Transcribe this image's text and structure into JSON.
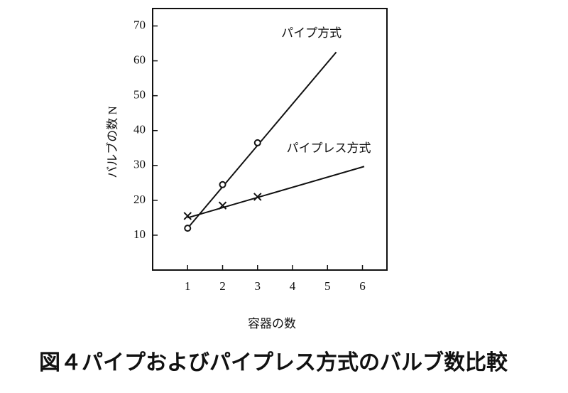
{
  "chart_data": {
    "type": "line",
    "caption": "図４パイプおよびパイプレス方式のバルブ数比較",
    "x_label": "容器の数",
    "y_label": "バルブの数 N",
    "xlim": [
      0,
      6.7
    ],
    "xticks": [
      1,
      2,
      3,
      4,
      5,
      6
    ],
    "ylim": [
      0,
      75
    ],
    "yticks": [
      10,
      20,
      30,
      40,
      50,
      60,
      70
    ],
    "series": [
      {
        "name": "パイプ方式",
        "color": "#111111",
        "marker": "circle",
        "x": [
          1,
          2,
          3
        ],
        "values": [
          12,
          24.5,
          36.5
        ],
        "fit": {
          "x": [
            1,
            5.25
          ],
          "values": [
            12,
            62.5
          ]
        }
      },
      {
        "name": "パイプレス方式",
        "color": "#111111",
        "marker": "cross",
        "x": [
          1,
          2,
          3
        ],
        "values": [
          15.5,
          18.5,
          21
        ],
        "fit": {
          "x": [
            1,
            6.05
          ],
          "values": [
            15,
            29.7
          ]
        }
      }
    ]
  }
}
